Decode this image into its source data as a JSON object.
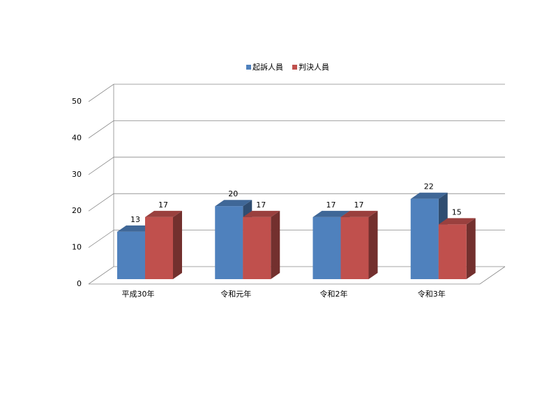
{
  "chart_data": {
    "type": "bar3d",
    "categories": [
      "平成30年",
      "令和元年",
      "令和2年",
      "令和3年"
    ],
    "series": [
      {
        "name": "起訴人員",
        "color": "#4f81bd",
        "values": [
          13,
          20,
          17,
          22
        ]
      },
      {
        "name": "判決人員",
        "color": "#c0504d",
        "values": [
          17,
          17,
          17,
          15
        ]
      }
    ],
    "ylim": [
      0,
      50
    ],
    "yticks": [
      0,
      10,
      20,
      30,
      40,
      50
    ],
    "grid": true,
    "legend": "top"
  }
}
